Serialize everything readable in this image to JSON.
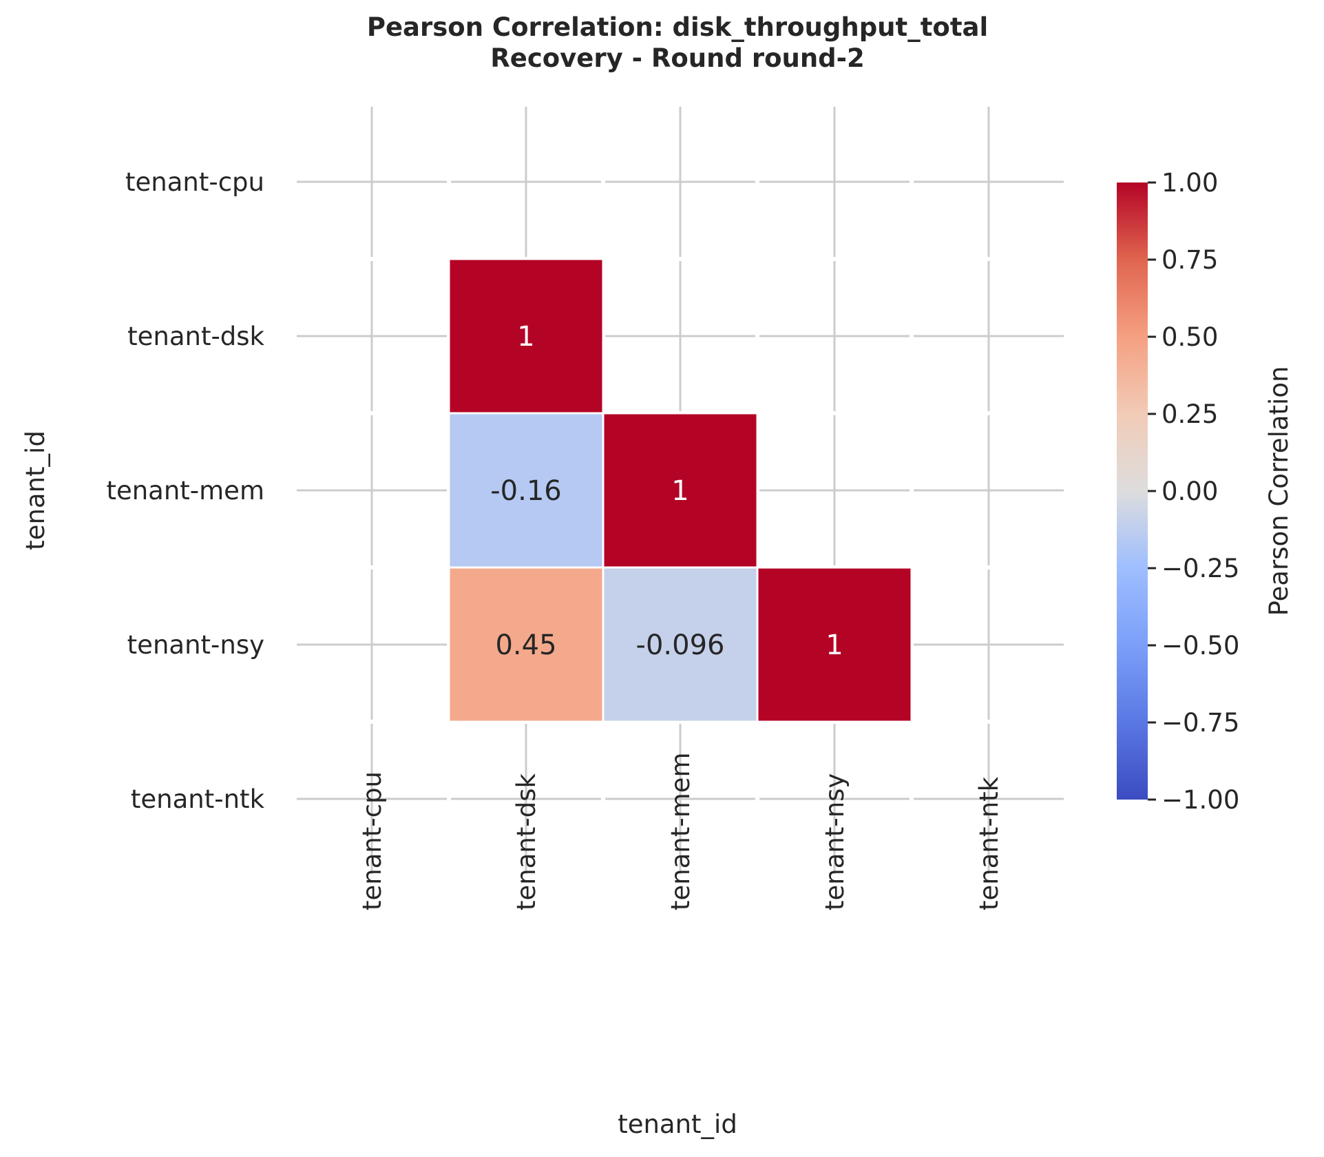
{
  "chart_data": {
    "type": "heatmap",
    "title": "Pearson Correlation: disk_throughput_total",
    "subtitle": "Recovery - Round round-2",
    "xlabel": "tenant_id",
    "ylabel": "tenant_id",
    "categories": [
      "tenant-cpu",
      "tenant-dsk",
      "tenant-mem",
      "tenant-nsy",
      "tenant-ntk"
    ],
    "cells": [
      {
        "row": "tenant-dsk",
        "col": "tenant-dsk",
        "value": 1,
        "label": "1"
      },
      {
        "row": "tenant-mem",
        "col": "tenant-dsk",
        "value": -0.16,
        "label": "-0.16"
      },
      {
        "row": "tenant-mem",
        "col": "tenant-mem",
        "value": 1,
        "label": "1"
      },
      {
        "row": "tenant-nsy",
        "col": "tenant-dsk",
        "value": 0.45,
        "label": "0.45"
      },
      {
        "row": "tenant-nsy",
        "col": "tenant-mem",
        "value": -0.096,
        "label": "-0.096"
      },
      {
        "row": "tenant-nsy",
        "col": "tenant-nsy",
        "value": 1,
        "label": "1"
      }
    ],
    "colorbar": {
      "label": "Pearson Correlation",
      "range": [
        -1,
        1
      ],
      "ticks": [
        "1.00",
        "0.75",
        "0.50",
        "0.25",
        "0.00",
        "−0.25",
        "−0.50",
        "−0.75",
        "−1.00"
      ],
      "colormap": "coolwarm",
      "low_color": "#3b4cc0",
      "mid_color": "#dddddd",
      "high_color": "#b40426"
    },
    "grid": true
  }
}
